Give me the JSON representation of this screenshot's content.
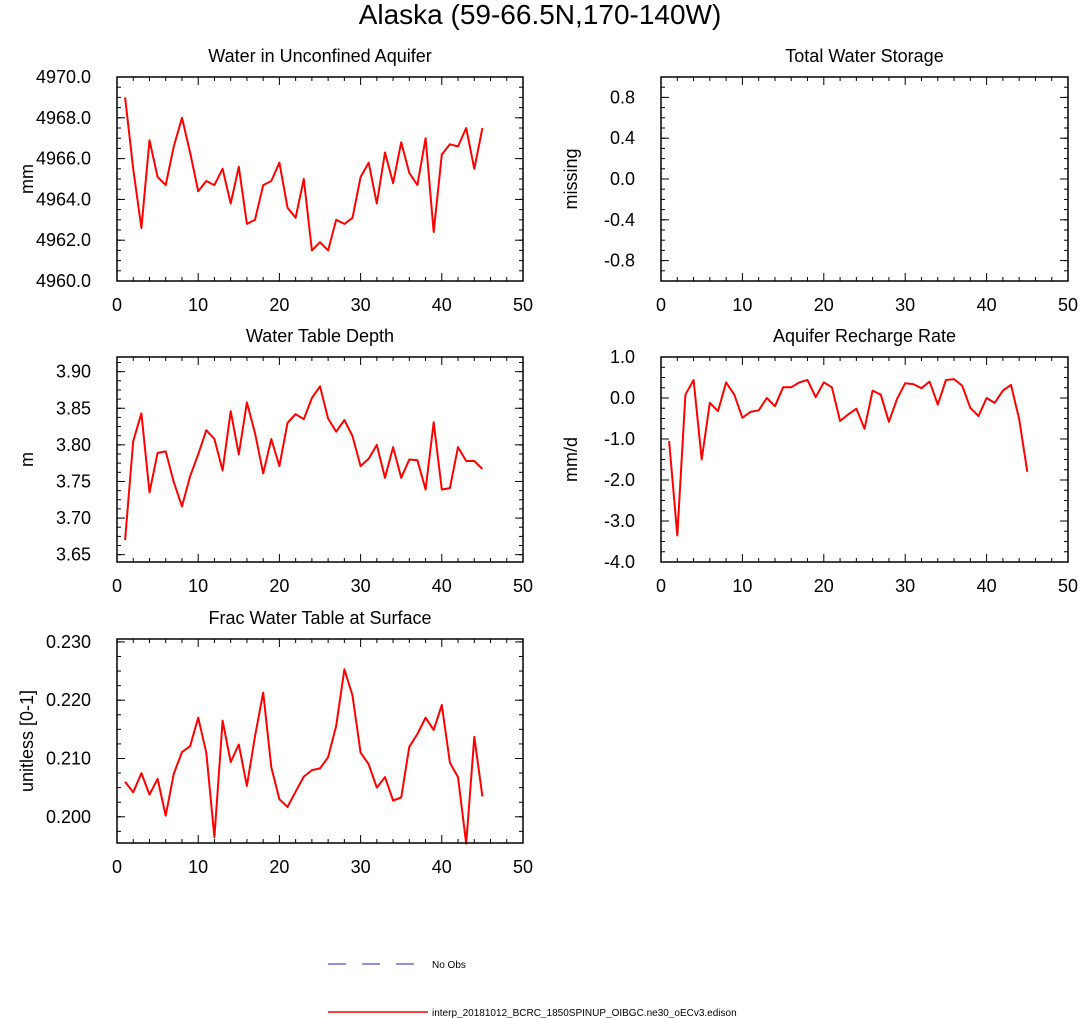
{
  "figure": {
    "title": "Alaska (59-66.5N,170-140W)",
    "line_color": "#ff0000",
    "obs_color": "#6a6adb"
  },
  "legend": [
    {
      "label": "No Obs",
      "style": "dashed",
      "color": "#6a6adb"
    },
    {
      "label": "interp_20181012_BCRC_1850SPINUP_OIBGC.ne30_oECv3.edison",
      "style": "solid",
      "color": "#ff0000"
    }
  ],
  "chart_data": [
    {
      "type": "line",
      "title": "Water in Unconfined Aquifer",
      "ylabel": "mm",
      "xlim": [
        0,
        50
      ],
      "ylim": [
        4960,
        4970
      ],
      "x_ticks": [
        "0",
        "10",
        "20",
        "30",
        "40",
        "50"
      ],
      "y_ticks": [
        "4960.0",
        "4962.0",
        "4964.0",
        "4966.0",
        "4968.0",
        "4970.0"
      ],
      "y_tick_values": [
        4960,
        4962,
        4964,
        4966,
        4968,
        4970
      ],
      "x": [
        1,
        2,
        3,
        4,
        5,
        6,
        7,
        8,
        9,
        10,
        11,
        12,
        13,
        14,
        15,
        16,
        17,
        18,
        19,
        20,
        21,
        22,
        23,
        24,
        25,
        26,
        27,
        28,
        29,
        30,
        31,
        32,
        33,
        34,
        35,
        36,
        37,
        38,
        39,
        40,
        41,
        42,
        43,
        44,
        45
      ],
      "values": [
        4969.0,
        4965.5,
        4962.6,
        4966.9,
        4965.1,
        4964.7,
        4966.6,
        4968.0,
        4966.3,
        4964.4,
        4964.9,
        4964.7,
        4965.5,
        4963.8,
        4965.6,
        4962.8,
        4963.0,
        4964.7,
        4964.9,
        4965.8,
        4963.6,
        4963.1,
        4965.0,
        4961.5,
        4961.9,
        4961.5,
        4963.0,
        4962.8,
        4963.1,
        4965.1,
        4965.8,
        4963.8,
        4966.3,
        4964.8,
        4966.8,
        4965.3,
        4964.7,
        4967.0,
        4962.4,
        4966.2,
        4966.7,
        4966.6,
        4967.5,
        4965.5,
        4967.5
      ]
    },
    {
      "type": "line",
      "title": "Total Water Storage",
      "ylabel": "missing",
      "xlim": [
        0,
        50
      ],
      "ylim": [
        -1,
        1
      ],
      "x_ticks": [
        "0",
        "10",
        "20",
        "30",
        "40",
        "50"
      ],
      "y_ticks": [
        "-0.8",
        "-0.4",
        "0.0",
        "0.4",
        "0.8"
      ],
      "y_tick_values": [
        -0.8,
        -0.4,
        0.0,
        0.4,
        0.8
      ],
      "x": [],
      "values": []
    },
    {
      "type": "line",
      "title": "Water Table Depth",
      "ylabel": "m",
      "xlim": [
        0,
        50
      ],
      "ylim": [
        3.64,
        3.92
      ],
      "x_ticks": [
        "0",
        "10",
        "20",
        "30",
        "40",
        "50"
      ],
      "y_ticks": [
        "3.65",
        "3.70",
        "3.75",
        "3.80",
        "3.85",
        "3.90"
      ],
      "y_tick_values": [
        3.65,
        3.7,
        3.75,
        3.8,
        3.85,
        3.9
      ],
      "x": [
        1,
        2,
        3,
        4,
        5,
        6,
        7,
        8,
        9,
        10,
        11,
        12,
        13,
        14,
        15,
        16,
        17,
        18,
        19,
        20,
        21,
        22,
        23,
        24,
        25,
        26,
        27,
        28,
        29,
        30,
        31,
        32,
        33,
        34,
        35,
        36,
        37,
        38,
        39,
        40,
        41,
        42,
        43,
        44,
        45
      ],
      "values": [
        3.67,
        3.805,
        3.843,
        3.735,
        3.789,
        3.791,
        3.749,
        3.716,
        3.757,
        3.787,
        3.82,
        3.808,
        3.765,
        3.846,
        3.787,
        3.858,
        3.816,
        3.761,
        3.808,
        3.771,
        3.83,
        3.842,
        3.835,
        3.864,
        3.88,
        3.836,
        3.818,
        3.834,
        3.812,
        3.771,
        3.781,
        3.8,
        3.755,
        3.797,
        3.755,
        3.78,
        3.779,
        3.739,
        3.831,
        3.739,
        3.741,
        3.797,
        3.778,
        3.778,
        3.767
      ]
    },
    {
      "type": "line",
      "title": "Aquifer Recharge Rate",
      "ylabel": "mm/d",
      "xlim": [
        0,
        50
      ],
      "ylim": [
        -4.0,
        1.0
      ],
      "x_ticks": [
        "0",
        "10",
        "20",
        "30",
        "40",
        "50"
      ],
      "y_ticks": [
        "-4.0",
        "-3.0",
        "-2.0",
        "-1.0",
        "0.0",
        "1.0"
      ],
      "y_tick_values": [
        -4.0,
        -3.0,
        -2.0,
        -1.0,
        0.0,
        1.0
      ],
      "x": [
        1,
        2,
        3,
        4,
        5,
        6,
        7,
        8,
        9,
        10,
        11,
        12,
        13,
        14,
        15,
        16,
        17,
        18,
        19,
        20,
        21,
        22,
        23,
        24,
        25,
        26,
        27,
        28,
        29,
        30,
        31,
        32,
        33,
        34,
        35,
        36,
        37,
        38,
        39,
        40,
        41,
        42,
        43,
        44,
        45
      ],
      "values": [
        -1.05,
        -3.35,
        0.08,
        0.44,
        -1.5,
        -0.12,
        -0.32,
        0.38,
        0.08,
        -0.48,
        -0.34,
        -0.3,
        0.0,
        -0.2,
        0.26,
        0.26,
        0.38,
        0.44,
        0.02,
        0.38,
        0.26,
        -0.56,
        -0.4,
        -0.26,
        -0.75,
        0.18,
        0.08,
        -0.58,
        -0.02,
        0.36,
        0.34,
        0.24,
        0.4,
        -0.16,
        0.44,
        0.46,
        0.3,
        -0.24,
        -0.44,
        0.0,
        -0.12,
        0.18,
        0.32,
        -0.52,
        -1.8
      ]
    },
    {
      "type": "line",
      "title": "Frac Water Table at Surface",
      "ylabel": "unitless [0-1]",
      "xlim": [
        0,
        50
      ],
      "ylim": [
        0.1955,
        0.2305
      ],
      "x_ticks": [
        "0",
        "10",
        "20",
        "30",
        "40",
        "50"
      ],
      "y_ticks": [
        "0.200",
        "0.210",
        "0.220",
        "0.230"
      ],
      "y_tick_values": [
        0.2,
        0.21,
        0.22,
        0.23
      ],
      "x": [
        1,
        2,
        3,
        4,
        5,
        6,
        7,
        8,
        9,
        10,
        11,
        12,
        13,
        14,
        15,
        16,
        17,
        18,
        19,
        20,
        21,
        22,
        23,
        24,
        25,
        26,
        27,
        28,
        29,
        30,
        31,
        32,
        33,
        34,
        35,
        36,
        37,
        38,
        39,
        40,
        41,
        42,
        43,
        44,
        45
      ],
      "values": [
        0.206,
        0.2042,
        0.2075,
        0.2038,
        0.2065,
        0.2002,
        0.2074,
        0.2111,
        0.2121,
        0.217,
        0.211,
        0.1965,
        0.2165,
        0.2094,
        0.2124,
        0.2053,
        0.2138,
        0.2213,
        0.2085,
        0.203,
        0.2017,
        0.2043,
        0.2069,
        0.208,
        0.2083,
        0.2102,
        0.2156,
        0.2253,
        0.2208,
        0.211,
        0.209,
        0.205,
        0.2068,
        0.2028,
        0.2033,
        0.212,
        0.2142,
        0.217,
        0.2149,
        0.2192,
        0.2093,
        0.2068,
        0.1954,
        0.2137,
        0.2035
      ]
    }
  ]
}
